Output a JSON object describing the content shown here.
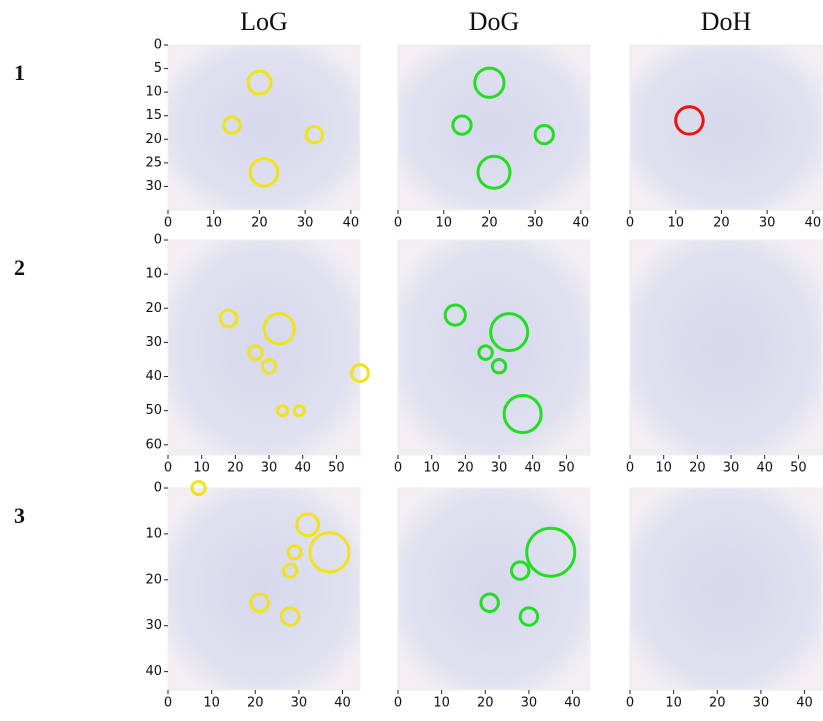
{
  "column_titles": [
    "LoG",
    "DoG",
    "DoH"
  ],
  "row_labels": [
    "1",
    "2",
    "3"
  ],
  "chart_data": [
    {
      "type": "blobs",
      "color": "#f0e21c",
      "xlim": [
        0,
        42
      ],
      "ylim": [
        35,
        0
      ],
      "xticks": [
        0,
        10,
        20,
        30,
        40
      ],
      "yticks": [
        0,
        5,
        10,
        15,
        20,
        25,
        30
      ],
      "x": [
        20,
        14,
        32,
        21
      ],
      "y": [
        8,
        17,
        19,
        27
      ],
      "r": [
        2.5,
        1.8,
        1.8,
        3
      ]
    },
    {
      "type": "blobs",
      "color": "#22dd22",
      "xlim": [
        0,
        42
      ],
      "ylim": [
        35,
        0
      ],
      "xticks": [
        0,
        10,
        20,
        30,
        40
      ],
      "x": [
        20,
        14,
        32,
        21
      ],
      "y": [
        8,
        17,
        19,
        27
      ],
      "r": [
        3.2,
        2,
        2,
        3.5
      ]
    },
    {
      "type": "blobs",
      "color": "#ee1111",
      "xlim": [
        0,
        42
      ],
      "ylim": [
        35,
        0
      ],
      "xticks": [
        0,
        10,
        20,
        30,
        40
      ],
      "x": [
        13
      ],
      "y": [
        16
      ],
      "r": [
        3
      ]
    },
    {
      "type": "blobs",
      "color": "#f0e21c",
      "xlim": [
        0,
        57
      ],
      "ylim": [
        63,
        0
      ],
      "xticks": [
        0,
        10,
        20,
        30,
        40,
        50
      ],
      "yticks": [
        0,
        10,
        20,
        30,
        40,
        50,
        60
      ],
      "x": [
        18,
        33,
        26,
        30,
        57,
        34,
        39
      ],
      "y": [
        23,
        26,
        33,
        37,
        39,
        50,
        50
      ],
      "r": [
        2.5,
        4.5,
        2,
        2,
        2.5,
        1.5,
        1.5
      ]
    },
    {
      "type": "blobs",
      "color": "#22dd22",
      "xlim": [
        0,
        57
      ],
      "ylim": [
        63,
        0
      ],
      "xticks": [
        0,
        10,
        20,
        30,
        40,
        50
      ],
      "x": [
        17,
        33,
        26,
        30,
        37
      ],
      "y": [
        22,
        27,
        33,
        37,
        51
      ],
      "r": [
        3,
        5.5,
        2,
        2,
        5.5
      ]
    },
    {
      "type": "blobs",
      "color": "#ee1111",
      "xlim": [
        0,
        57
      ],
      "ylim": [
        63,
        0
      ],
      "xticks": [
        0,
        10,
        20,
        30,
        40,
        50
      ],
      "x": [],
      "y": [],
      "r": []
    },
    {
      "type": "blobs",
      "color": "#f0e21c",
      "xlim": [
        0,
        44
      ],
      "ylim": [
        44,
        0
      ],
      "xticks": [
        0,
        10,
        20,
        30,
        40
      ],
      "yticks": [
        0,
        10,
        20,
        30,
        40
      ],
      "x": [
        7,
        32,
        37,
        29,
        28,
        21,
        28
      ],
      "y": [
        0,
        8,
        14,
        14,
        18,
        25,
        28
      ],
      "r": [
        1.5,
        2.5,
        4.5,
        1.5,
        1.5,
        2,
        2
      ]
    },
    {
      "type": "blobs",
      "color": "#22dd22",
      "xlim": [
        0,
        44
      ],
      "ylim": [
        44,
        0
      ],
      "xticks": [
        0,
        10,
        20,
        30,
        40
      ],
      "x": [
        35,
        28,
        21,
        30
      ],
      "y": [
        14,
        18,
        25,
        28
      ],
      "r": [
        5.5,
        2,
        2,
        2
      ]
    },
    {
      "type": "blobs",
      "color": "#ee1111",
      "xlim": [
        0,
        44
      ],
      "ylim": [
        44,
        0
      ],
      "xticks": [
        0,
        10,
        20,
        30,
        40
      ],
      "x": [],
      "y": [],
      "r": []
    }
  ]
}
